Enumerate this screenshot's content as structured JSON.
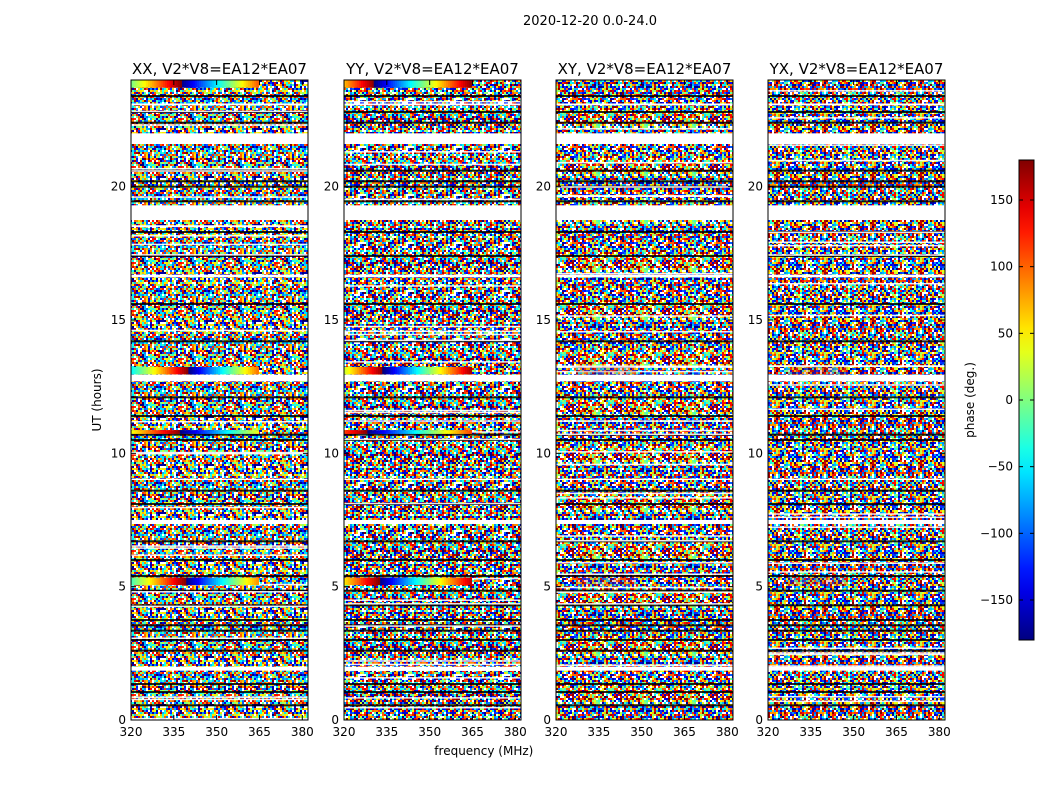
{
  "figure": {
    "suptitle": "2020-12-20 0.0-24.0"
  },
  "chart_data": [
    {
      "type": "heatmap",
      "title": "XX, V2*V8=EA12*EA07",
      "xlabel": "",
      "ylabel": "UT (hours)",
      "xlim": [
        320,
        382
      ],
      "ylim": [
        0,
        24
      ],
      "xticks": [
        "320",
        "335",
        "350",
        "365",
        "380"
      ],
      "yticks": [
        "0",
        "5",
        "10",
        "15",
        "20"
      ],
      "value": "phase (deg.) per channel/time, mostly noise with coherent bands near 5.2, 10.8, 13.1 and 23.9 h"
    },
    {
      "type": "heatmap",
      "title": "YY, V2*V8=EA12*EA07",
      "xlabel": "frequency (MHz)",
      "ylabel": "",
      "xlim": [
        320,
        382
      ],
      "ylim": [
        0,
        24
      ],
      "xticks": [
        "320",
        "335",
        "350",
        "365",
        "380"
      ],
      "yticks": [
        "0",
        "5",
        "10",
        "15",
        "20"
      ],
      "value": "phase (deg.) per channel/time, coherent bands near 5.2, 10.8, 13.1 and 23.9 h"
    },
    {
      "type": "heatmap",
      "title": "XY, V2*V8=EA12*EA07",
      "xlabel": "",
      "ylabel": "",
      "xlim": [
        320,
        382
      ],
      "ylim": [
        0,
        24
      ],
      "xticks": [
        "320",
        "335",
        "350",
        "365",
        "380"
      ],
      "yticks": [
        "0",
        "5",
        "10",
        "15",
        "20"
      ],
      "value": "phase (deg.) per channel/time, noise-like"
    },
    {
      "type": "heatmap",
      "title": "YX, V2*V8=EA12*EA07",
      "xlabel": "",
      "ylabel": "",
      "xlim": [
        320,
        382
      ],
      "ylim": [
        0,
        24
      ],
      "xticks": [
        "320",
        "335",
        "350",
        "365",
        "380"
      ],
      "yticks": [
        "0",
        "5",
        "10",
        "15",
        "20"
      ],
      "value": "phase (deg.) per channel/time, noise-like"
    }
  ],
  "colorbar": {
    "label": "phase (deg.)",
    "range": [
      -180,
      180
    ],
    "ticks": [
      "150",
      "100",
      "50",
      "0",
      "−50",
      "−100",
      "−150"
    ],
    "tick_values": [
      150,
      100,
      50,
      0,
      -50,
      -100,
      -150
    ],
    "colormap": "jet"
  }
}
